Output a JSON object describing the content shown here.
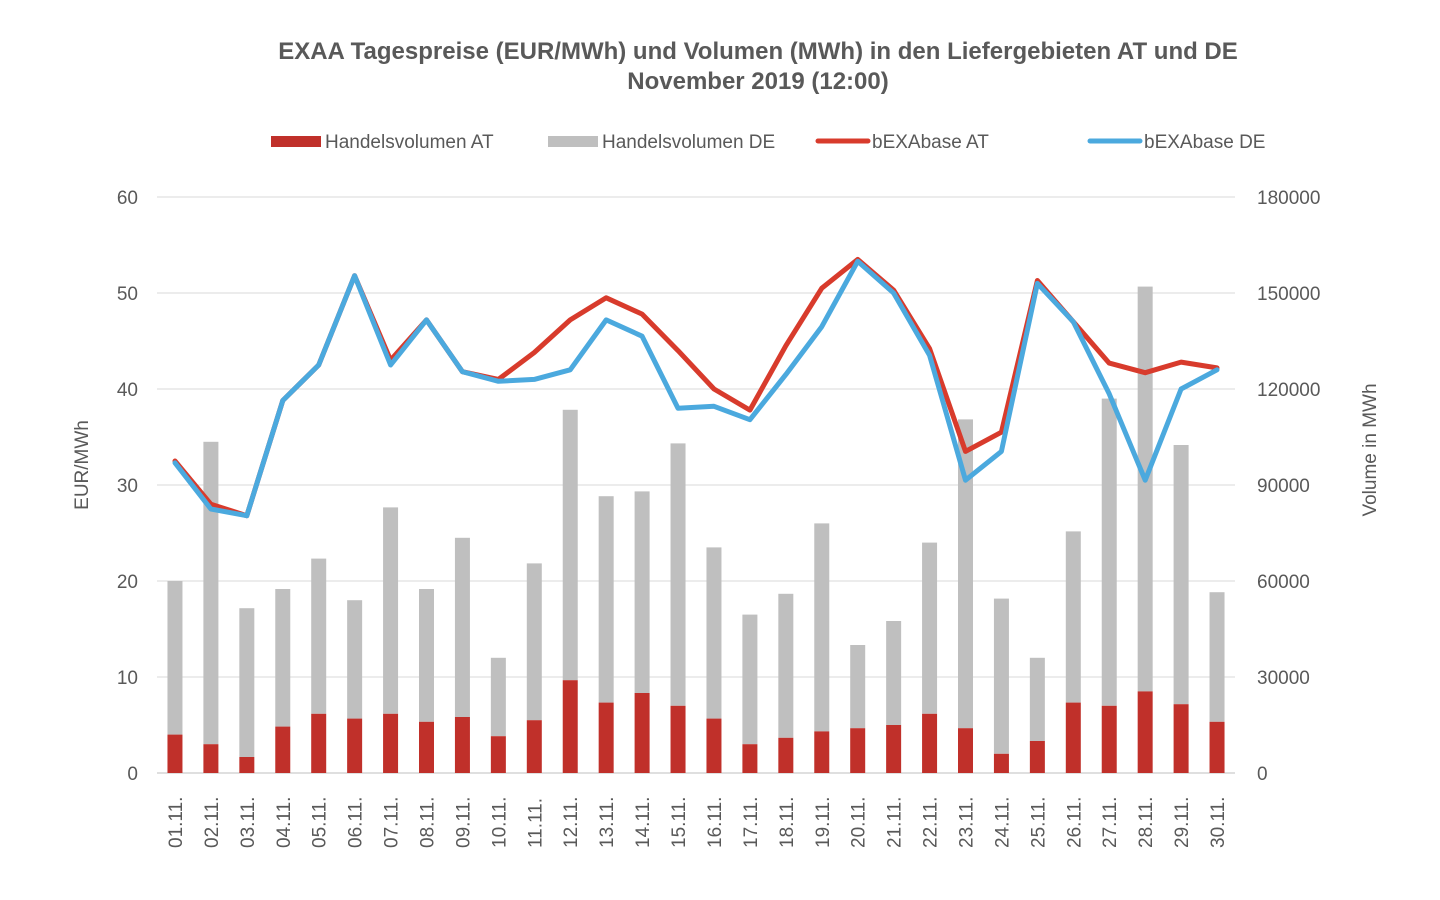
{
  "chart_data": {
    "type": "bar",
    "title": "EXAA Tagespreise (EUR/MWh) und Volumen (MWh)  in den Liefergebieten AT und DE",
    "subtitle": "November 2019 (12:00)",
    "ylabel_left": "EUR/MWh",
    "ylabel_right": "Volume in MWh",
    "ylim_left": [
      0,
      60
    ],
    "ylim_right": [
      0,
      180000
    ],
    "yticks_left": [
      "0",
      "10",
      "20",
      "30",
      "40",
      "50",
      "60"
    ],
    "yticks_right": [
      "0",
      "30000",
      "60000",
      "90000",
      "120000",
      "150000",
      "180000"
    ],
    "grid": true,
    "legend_position": "top",
    "categories": [
      "01.11.",
      "02.11.",
      "03.11.",
      "04.11.",
      "05.11.",
      "06.11.",
      "07.11.",
      "08.11.",
      "09.11.",
      "10.11.",
      "11.11.",
      "12.11.",
      "13.11.",
      "14.11.",
      "15.11.",
      "16.11.",
      "17.11.",
      "18.11.",
      "19.11.",
      "20.11.",
      "21.11.",
      "22.11.",
      "23.11.",
      "24.11.",
      "25.11.",
      "26.11.",
      "27.11.",
      "28.11.",
      "29.11.",
      "30.11."
    ],
    "series": [
      {
        "name": "Handelsvolumen AT",
        "kind": "bar",
        "axis": "right",
        "color": "#c0302a",
        "values": [
          12000,
          9000,
          5000,
          14500,
          18500,
          17000,
          18500,
          16000,
          17500,
          11500,
          16500,
          29000,
          22000,
          25000,
          21000,
          17000,
          9000,
          11000,
          13000,
          14000,
          15000,
          18500,
          14000,
          6000,
          10000,
          22000,
          21000,
          25500,
          21500,
          16000
        ]
      },
      {
        "name": "Handelsvolumen DE",
        "kind": "bar",
        "axis": "right",
        "color": "#bfbfbf",
        "values": [
          48000,
          94500,
          46500,
          43000,
          48500,
          37000,
          64500,
          41500,
          56000,
          24500,
          49000,
          84500,
          64500,
          63000,
          82000,
          53500,
          40500,
          45000,
          65000,
          26000,
          32500,
          53500,
          96500,
          48500,
          26000,
          53500,
          96000,
          126500,
          81000,
          40500
        ]
      },
      {
        "name": "bEXAbase AT",
        "kind": "line",
        "axis": "left",
        "color": "#d83b2c",
        "values": [
          32.5,
          28.0,
          26.8,
          38.8,
          42.5,
          51.8,
          43.0,
          47.2,
          41.8,
          41.0,
          43.8,
          47.2,
          49.5,
          47.8,
          44.0,
          40.0,
          37.8,
          44.5,
          50.5,
          53.5,
          50.3,
          44.2,
          33.5,
          35.5,
          51.3,
          47.0,
          42.7,
          41.7,
          42.8,
          42.2
        ]
      },
      {
        "name": "bEXAbase DE",
        "kind": "line",
        "axis": "left",
        "color": "#4ba9de",
        "values": [
          32.3,
          27.5,
          26.8,
          38.8,
          42.5,
          51.8,
          42.5,
          47.2,
          41.8,
          40.8,
          41.0,
          42.0,
          47.2,
          45.5,
          38.0,
          38.2,
          36.8,
          41.5,
          46.5,
          53.3,
          50.0,
          43.5,
          30.5,
          33.5,
          51.0,
          47.0,
          39.5,
          30.5,
          40.0,
          42.0
        ]
      }
    ]
  }
}
